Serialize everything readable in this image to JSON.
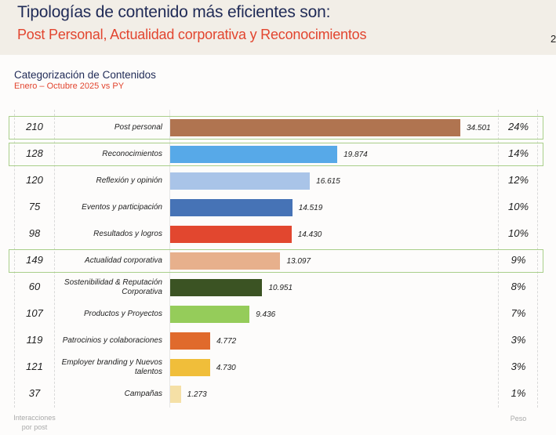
{
  "header": {
    "title": "Tipologías de contenido más eficientes son:",
    "subtitle": "Post Personal, Actualidad corporativa y Reconocimientos",
    "page_number": "2"
  },
  "chart_data": {
    "type": "bar",
    "orientation": "horizontal",
    "title": "Categorización de Contenidos",
    "subtitle": "Enero – Octubre 2025 vs PY",
    "categories": [
      "Post personal",
      "Reconocimientos",
      "Reflexión y opinión",
      "Eventos y participación",
      "Resultados y logros",
      "Actualidad corporativa",
      "Sostenibilidad & Reputación Corporativa",
      "Productos y Proyectos",
      "Patrocinios y colaboraciones",
      "Employer branding y Nuevos talentos",
      "Campañas"
    ],
    "values": [
      34501,
      19874,
      16615,
      14519,
      14430,
      13097,
      10951,
      9436,
      4772,
      4730,
      1273
    ],
    "value_labels": [
      "34.501",
      "19.874",
      "16.615",
      "14.519",
      "14.430",
      "13.097",
      "10.951",
      "9.436",
      "4.772",
      "4.730",
      "1.273"
    ],
    "interacciones_por_post": [
      "210",
      "128",
      "120",
      "75",
      "98",
      "149",
      "60",
      "107",
      "119",
      "121",
      "37"
    ],
    "peso": [
      "24%",
      "14%",
      "12%",
      "10%",
      "10%",
      "9%",
      "8%",
      "7%",
      "3%",
      "3%",
      "1%"
    ],
    "colors": [
      "#b07450",
      "#57a9e8",
      "#a9c4e8",
      "#4673b6",
      "#e2472f",
      "#e7b08c",
      "#3b5323",
      "#95cc5a",
      "#e06a2c",
      "#f0be3a",
      "#f5e0a6"
    ],
    "highlighted": [
      true,
      true,
      false,
      false,
      false,
      true,
      false,
      false,
      false,
      false,
      false
    ],
    "highlight_color": "#a9cf8a",
    "left_column_label": "Interacciones por post",
    "right_column_label": "Peso",
    "xlim": [
      0,
      34501
    ]
  }
}
